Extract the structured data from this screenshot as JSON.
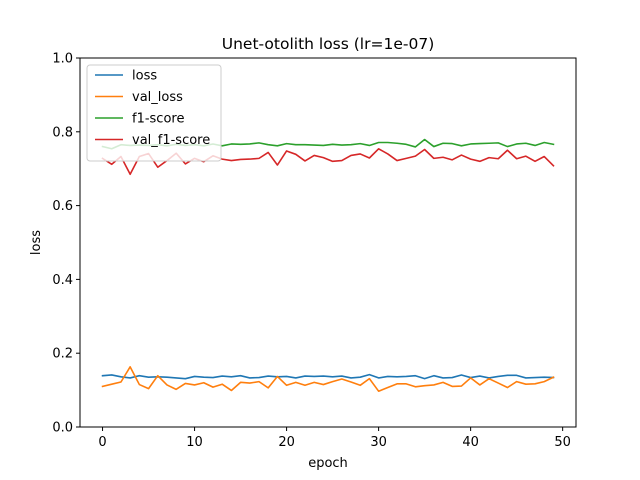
{
  "chart_data": {
    "type": "line",
    "title": "Unet-otolith loss (lr=1e-07)",
    "xlabel": "epoch",
    "ylabel": "loss",
    "xlim": [
      -2.45,
      51.45
    ],
    "ylim": [
      0.0,
      1.0
    ],
    "xticks": [
      0,
      10,
      20,
      30,
      40,
      50
    ],
    "yticks": [
      0.0,
      0.2,
      0.4,
      0.6,
      0.8,
      1.0
    ],
    "xtick_labels": [
      "0",
      "10",
      "20",
      "30",
      "40",
      "50"
    ],
    "ytick_labels": [
      "0.0",
      "0.2",
      "0.4",
      "0.6",
      "0.8",
      "1.0"
    ],
    "grid": false,
    "legend_position": "upper-left",
    "x": [
      0,
      1,
      2,
      3,
      4,
      5,
      6,
      7,
      8,
      9,
      10,
      11,
      12,
      13,
      14,
      15,
      16,
      17,
      18,
      19,
      20,
      21,
      22,
      23,
      24,
      25,
      26,
      27,
      28,
      29,
      30,
      31,
      32,
      33,
      34,
      35,
      36,
      37,
      38,
      39,
      40,
      41,
      42,
      43,
      44,
      45,
      46,
      47,
      48,
      49
    ],
    "series": [
      {
        "name": "loss",
        "color": "#1f77b4",
        "values": [
          0.139,
          0.141,
          0.136,
          0.133,
          0.139,
          0.135,
          0.136,
          0.135,
          0.133,
          0.131,
          0.137,
          0.135,
          0.134,
          0.138,
          0.136,
          0.139,
          0.133,
          0.134,
          0.138,
          0.136,
          0.137,
          0.133,
          0.138,
          0.137,
          0.138,
          0.136,
          0.138,
          0.133,
          0.135,
          0.142,
          0.133,
          0.137,
          0.136,
          0.137,
          0.139,
          0.131,
          0.139,
          0.133,
          0.134,
          0.141,
          0.134,
          0.138,
          0.133,
          0.137,
          0.14,
          0.14,
          0.133,
          0.134,
          0.135,
          0.134
        ]
      },
      {
        "name": "val_loss",
        "color": "#ff7f0e",
        "values": [
          0.11,
          0.116,
          0.122,
          0.163,
          0.115,
          0.104,
          0.139,
          0.114,
          0.102,
          0.118,
          0.114,
          0.12,
          0.108,
          0.116,
          0.099,
          0.121,
          0.119,
          0.123,
          0.106,
          0.137,
          0.113,
          0.121,
          0.113,
          0.121,
          0.115,
          0.123,
          0.13,
          0.122,
          0.113,
          0.131,
          0.097,
          0.107,
          0.117,
          0.117,
          0.109,
          0.112,
          0.114,
          0.121,
          0.11,
          0.111,
          0.133,
          0.114,
          0.131,
          0.119,
          0.107,
          0.123,
          0.116,
          0.117,
          0.123,
          0.135
        ]
      },
      {
        "name": "f1-score",
        "color": "#2ca02c",
        "values": [
          0.76,
          0.754,
          0.765,
          0.763,
          0.764,
          0.763,
          0.765,
          0.762,
          0.766,
          0.763,
          0.765,
          0.762,
          0.767,
          0.762,
          0.767,
          0.766,
          0.767,
          0.77,
          0.765,
          0.762,
          0.768,
          0.765,
          0.765,
          0.764,
          0.763,
          0.766,
          0.764,
          0.765,
          0.768,
          0.763,
          0.771,
          0.771,
          0.769,
          0.766,
          0.759,
          0.779,
          0.76,
          0.769,
          0.768,
          0.762,
          0.767,
          0.768,
          0.769,
          0.77,
          0.76,
          0.767,
          0.769,
          0.763,
          0.771,
          0.766
        ]
      },
      {
        "name": "val_f1-score",
        "color": "#d62728",
        "values": [
          0.728,
          0.712,
          0.733,
          0.685,
          0.733,
          0.741,
          0.704,
          0.722,
          0.742,
          0.713,
          0.728,
          0.719,
          0.735,
          0.726,
          0.722,
          0.725,
          0.726,
          0.728,
          0.744,
          0.71,
          0.748,
          0.739,
          0.721,
          0.736,
          0.73,
          0.72,
          0.722,
          0.736,
          0.74,
          0.729,
          0.754,
          0.74,
          0.722,
          0.728,
          0.734,
          0.752,
          0.728,
          0.731,
          0.724,
          0.737,
          0.726,
          0.72,
          0.73,
          0.727,
          0.75,
          0.727,
          0.734,
          0.72,
          0.733,
          0.708
        ]
      }
    ]
  }
}
